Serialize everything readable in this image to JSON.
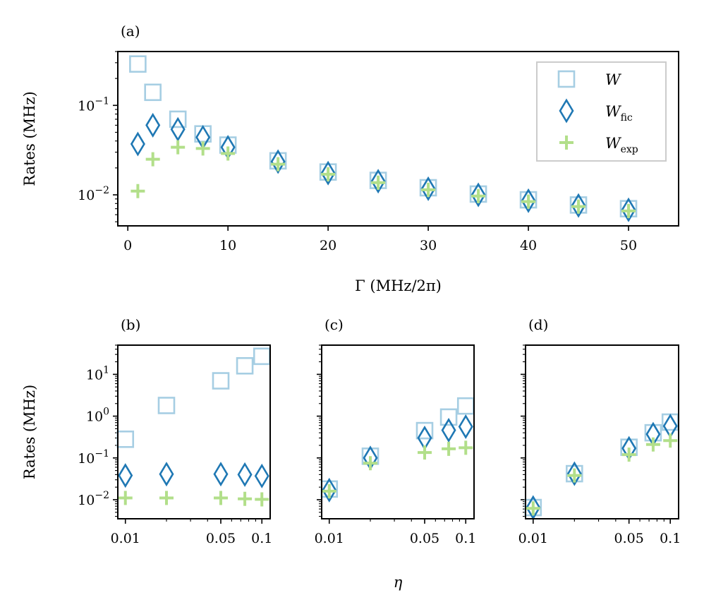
{
  "colors": {
    "W": "#a6cee3",
    "W_fic": "#1f78b4",
    "W_exp": "#b2df8a",
    "axes": "#000000",
    "legend_border": "#cccccc"
  },
  "legend": {
    "W": {
      "base": "W",
      "sub": ""
    },
    "W_fic": {
      "base": "W",
      "sub": "fic"
    },
    "W_exp": {
      "base": "W",
      "sub": "exp"
    }
  },
  "chart_data": [
    {
      "panel": "(a)",
      "type": "scatter",
      "xscale": "linear",
      "yscale": "log",
      "xlim": [
        -1,
        55
      ],
      "ylim": [
        0.0045,
        0.4
      ],
      "xlabel": "Γ (MHz/2π)",
      "ylabel": "Rates (MHz)",
      "xticks": [
        {
          "value": 0,
          "label": "0"
        },
        {
          "value": 10,
          "label": "10"
        },
        {
          "value": 20,
          "label": "20"
        },
        {
          "value": 30,
          "label": "30"
        },
        {
          "value": 40,
          "label": "40"
        },
        {
          "value": 50,
          "label": "50"
        }
      ],
      "yticks": [
        {
          "value": 0.01,
          "base": "10",
          "exp": "−2"
        },
        {
          "value": 0.1,
          "base": "10",
          "exp": "−1"
        }
      ],
      "legend_position": "top-right",
      "x": [
        1,
        2.5,
        5,
        7.5,
        10,
        15,
        20,
        25,
        30,
        35,
        40,
        45,
        50
      ],
      "series": [
        {
          "key": "W",
          "marker": "square",
          "values": [
            0.29,
            0.14,
            0.07,
            0.048,
            0.036,
            0.024,
            0.018,
            0.0145,
            0.012,
            0.0102,
            0.0088,
            0.0077,
            0.007
          ]
        },
        {
          "key": "W_fic",
          "marker": "diamond",
          "values": [
            0.037,
            0.06,
            0.054,
            0.044,
            0.034,
            0.0235,
            0.0175,
            0.0142,
            0.0117,
            0.01,
            0.0086,
            0.0076,
            0.0068
          ]
        },
        {
          "key": "W_exp",
          "marker": "plus",
          "values": [
            0.011,
            0.025,
            0.034,
            0.033,
            0.029,
            0.022,
            0.017,
            0.0137,
            0.0114,
            0.0097,
            0.0084,
            0.0074,
            0.0066
          ]
        }
      ]
    },
    {
      "panel": "(b)",
      "type": "scatter",
      "xscale": "log",
      "yscale": "log",
      "xlim": [
        0.0088,
        0.115
      ],
      "ylim": [
        0.0035,
        50
      ],
      "xlabel": "",
      "ylabel": "Rates (MHz)",
      "xticks": [
        {
          "value": 0.01,
          "label": "0.01"
        },
        {
          "value": 0.05,
          "label": "0.05"
        },
        {
          "value": 0.1,
          "label": "0.1"
        }
      ],
      "yticks": [
        {
          "value": 0.01,
          "base": "10",
          "exp": "−2"
        },
        {
          "value": 0.1,
          "base": "10",
          "exp": "−1"
        },
        {
          "value": 1,
          "base": "10",
          "exp": "0"
        },
        {
          "value": 10,
          "base": "10",
          "exp": "1"
        }
      ],
      "x": [
        0.01,
        0.02,
        0.05,
        0.075,
        0.1
      ],
      "series": [
        {
          "key": "W",
          "marker": "square",
          "values": [
            0.28,
            1.8,
            7,
            16,
            27
          ]
        },
        {
          "key": "W_fic",
          "marker": "diamond",
          "values": [
            0.038,
            0.041,
            0.041,
            0.04,
            0.037
          ]
        },
        {
          "key": "W_exp",
          "marker": "plus",
          "values": [
            0.011,
            0.011,
            0.011,
            0.0105,
            0.0102
          ]
        }
      ]
    },
    {
      "panel": "(c)",
      "type": "scatter",
      "xscale": "log",
      "yscale": "log",
      "xlim": [
        0.0088,
        0.115
      ],
      "ylim": [
        0.0035,
        50
      ],
      "xlabel": "η",
      "ylabel": "",
      "xticks": [
        {
          "value": 0.01,
          "label": "0.01"
        },
        {
          "value": 0.05,
          "label": "0.05"
        },
        {
          "value": 0.1,
          "label": "0.1"
        }
      ],
      "yticks": [],
      "x": [
        0.01,
        0.02,
        0.05,
        0.075,
        0.1
      ],
      "series": [
        {
          "key": "W",
          "marker": "square",
          "values": [
            0.018,
            0.11,
            0.45,
            0.95,
            1.75
          ]
        },
        {
          "key": "W_fic",
          "marker": "diamond",
          "values": [
            0.017,
            0.1,
            0.3,
            0.46,
            0.56
          ]
        },
        {
          "key": "W_exp",
          "marker": "plus",
          "values": [
            0.016,
            0.075,
            0.135,
            0.165,
            0.175
          ]
        }
      ]
    },
    {
      "panel": "(d)",
      "type": "scatter",
      "xscale": "log",
      "yscale": "log",
      "xlim": [
        0.0088,
        0.115
      ],
      "ylim": [
        0.0035,
        50
      ],
      "xlabel": "",
      "ylabel": "",
      "xticks": [
        {
          "value": 0.01,
          "label": "0.01"
        },
        {
          "value": 0.05,
          "label": "0.05"
        },
        {
          "value": 0.1,
          "label": "0.1"
        }
      ],
      "yticks": [],
      "x": [
        0.01,
        0.02,
        0.05,
        0.075,
        0.1
      ],
      "series": [
        {
          "key": "W",
          "marker": "square",
          "values": [
            0.0065,
            0.042,
            0.18,
            0.4,
            0.72
          ]
        },
        {
          "key": "W_fic",
          "marker": "diamond",
          "values": [
            0.0065,
            0.042,
            0.17,
            0.37,
            0.58
          ]
        },
        {
          "key": "W_exp",
          "marker": "plus",
          "values": [
            0.0062,
            0.038,
            0.12,
            0.21,
            0.26
          ]
        }
      ]
    }
  ]
}
